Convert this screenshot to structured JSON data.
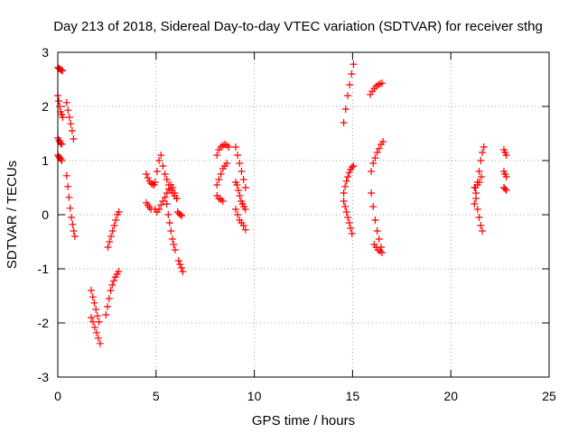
{
  "chart_data": {
    "type": "scatter",
    "title": "Day 213 of 2018, Sidereal Day-to-day VTEC variation (SDTVAR) for receiver sthg",
    "xlabel": "GPS time / hours",
    "ylabel": "SDTVAR / TECUs",
    "xlim": [
      0,
      25
    ],
    "ylim": [
      -3,
      3
    ],
    "xticks": [
      0,
      5,
      10,
      15,
      20,
      25
    ],
    "yticks": [
      -3,
      -2,
      -1,
      0,
      1,
      2,
      3
    ],
    "xtick_labels": [
      "0",
      "5",
      "10",
      "15",
      "20",
      "25"
    ],
    "ytick_labels": [
      "-3",
      "-2",
      "-1",
      "0",
      "1",
      "2",
      "3"
    ],
    "grid": true,
    "marker": "+",
    "color": "#ff0000",
    "segments": [
      {
        "x": [
          0.0,
          0.06,
          0.12,
          0.18,
          0.24
        ],
        "y": [
          2.72,
          2.7,
          2.69,
          2.67,
          2.66
        ]
      },
      {
        "x": [
          0.0,
          0.05,
          0.1,
          0.15,
          0.2,
          0.25
        ],
        "y": [
          2.2,
          2.1,
          2.0,
          1.9,
          1.85,
          1.8
        ]
      },
      {
        "x": [
          0.0,
          0.05,
          0.1,
          0.15,
          0.2
        ],
        "y": [
          1.42,
          1.38,
          1.35,
          1.32,
          1.3
        ]
      },
      {
        "x": [
          0.0,
          0.05,
          0.1,
          0.15,
          0.2
        ],
        "y": [
          1.1,
          1.07,
          1.05,
          1.03,
          1.0
        ]
      },
      {
        "x": [
          0.45,
          0.52,
          0.59,
          0.66,
          0.73,
          0.8
        ],
        "y": [
          2.07,
          1.93,
          1.8,
          1.68,
          1.55,
          1.4
        ]
      },
      {
        "x": [
          0.45,
          0.51,
          0.57,
          0.63,
          0.69,
          0.75,
          0.81,
          0.87
        ],
        "y": [
          0.72,
          0.52,
          0.32,
          0.12,
          -0.05,
          -0.18,
          -0.3,
          -0.4
        ]
      },
      {
        "x": [
          1.7,
          1.78,
          1.86,
          1.94,
          2.02,
          2.1
        ],
        "y": [
          -1.4,
          -1.52,
          -1.63,
          -1.75,
          -1.87,
          -1.98
        ]
      },
      {
        "x": [
          1.7,
          1.79,
          1.88,
          1.97,
          2.06,
          2.15
        ],
        "y": [
          -1.9,
          -1.98,
          -2.08,
          -2.18,
          -2.28,
          -2.38
        ]
      },
      {
        "x": [
          2.45,
          2.53,
          2.61,
          2.69,
          2.77,
          2.85,
          2.93,
          3.01,
          3.09
        ],
        "y": [
          -1.85,
          -1.7,
          -1.55,
          -1.4,
          -1.3,
          -1.22,
          -1.15,
          -1.1,
          -1.05
        ]
      },
      {
        "x": [
          2.55,
          2.63,
          2.71,
          2.79,
          2.87,
          2.95,
          3.03,
          3.11
        ],
        "y": [
          -0.6,
          -0.5,
          -0.4,
          -0.3,
          -0.2,
          -0.1,
          0.0,
          0.05
        ]
      },
      {
        "x": [
          4.5,
          4.58,
          4.66,
          4.74,
          4.82,
          4.9
        ],
        "y": [
          0.75,
          0.68,
          0.62,
          0.58,
          0.56,
          0.55
        ]
      },
      {
        "x": [
          4.5,
          4.58,
          4.66,
          4.74
        ],
        "y": [
          0.22,
          0.18,
          0.14,
          0.1
        ]
      },
      {
        "x": [
          4.95,
          5.05,
          5.15,
          5.25,
          5.35,
          5.45,
          5.55,
          5.65,
          5.75,
          5.85,
          5.95,
          6.05
        ],
        "y": [
          0.6,
          0.8,
          1.0,
          1.1,
          0.9,
          0.75,
          0.65,
          0.55,
          0.45,
          0.4,
          0.35,
          0.3
        ]
      },
      {
        "x": [
          4.95,
          5.05,
          5.15,
          5.25,
          5.35,
          5.45,
          5.55,
          5.65,
          5.75,
          5.85,
          5.95,
          6.05
        ],
        "y": [
          0.1,
          0.05,
          0.1,
          0.18,
          0.25,
          0.32,
          0.4,
          0.48,
          0.55,
          0.5,
          0.4,
          0.3
        ]
      },
      {
        "x": [
          5.55,
          5.62,
          5.69,
          5.76,
          5.83,
          5.9,
          5.97
        ],
        "y": [
          0.2,
          0.0,
          -0.15,
          -0.3,
          -0.45,
          -0.55,
          -0.65
        ]
      },
      {
        "x": [
          6.1,
          6.17,
          6.24,
          6.31
        ],
        "y": [
          0.05,
          0.02,
          0.0,
          -0.02
        ]
      },
      {
        "x": [
          6.15,
          6.22,
          6.29,
          6.36
        ],
        "y": [
          -0.85,
          -0.92,
          -0.98,
          -1.05
        ]
      },
      {
        "x": [
          8.1,
          8.2,
          8.3,
          8.4,
          8.5,
          8.6,
          8.7
        ],
        "y": [
          1.1,
          1.2,
          1.25,
          1.28,
          1.3,
          1.28,
          1.25
        ]
      },
      {
        "x": [
          8.1,
          8.2,
          8.3,
          8.4,
          8.5,
          8.6
        ],
        "y": [
          0.55,
          0.65,
          0.75,
          0.85,
          0.9,
          0.95
        ]
      },
      {
        "x": [
          8.1,
          8.2,
          8.3,
          8.4
        ],
        "y": [
          0.35,
          0.3,
          0.28,
          0.25
        ]
      },
      {
        "x": [
          9.05,
          9.15,
          9.25,
          9.35,
          9.45,
          9.55
        ],
        "y": [
          1.25,
          1.1,
          0.95,
          0.8,
          0.65,
          0.5
        ]
      },
      {
        "x": [
          9.05,
          9.12,
          9.19,
          9.26,
          9.33,
          9.4,
          9.47,
          9.54
        ],
        "y": [
          0.6,
          0.55,
          0.45,
          0.35,
          0.25,
          0.2,
          0.15,
          0.1
        ]
      },
      {
        "x": [
          9.05,
          9.15,
          9.25,
          9.35,
          9.45,
          9.55
        ],
        "y": [
          0.1,
          0.0,
          -0.1,
          -0.15,
          -0.2,
          -0.28
        ]
      },
      {
        "x": [
          14.55,
          14.65,
          14.75,
          14.85,
          14.95,
          15.05
        ],
        "y": [
          1.7,
          1.95,
          2.2,
          2.4,
          2.6,
          2.78
        ]
      },
      {
        "x": [
          14.55,
          14.62,
          14.69,
          14.76,
          14.83,
          14.9,
          14.97,
          15.04
        ],
        "y": [
          0.4,
          0.52,
          0.62,
          0.7,
          0.78,
          0.84,
          0.88,
          0.9
        ]
      },
      {
        "x": [
          14.55,
          14.62,
          14.69,
          14.76,
          14.83,
          14.9,
          14.97
        ],
        "y": [
          0.25,
          0.15,
          0.05,
          -0.05,
          -0.15,
          -0.25,
          -0.35
        ]
      },
      {
        "x": [
          15.9,
          16.0,
          16.1,
          16.2,
          16.3,
          16.4,
          16.5
        ],
        "y": [
          2.22,
          2.28,
          2.33,
          2.37,
          2.4,
          2.42,
          2.43
        ]
      },
      {
        "x": [
          15.95,
          16.05,
          16.15,
          16.25,
          16.35,
          16.45,
          16.55
        ],
        "y": [
          0.8,
          0.95,
          1.05,
          1.15,
          1.22,
          1.3,
          1.35
        ]
      },
      {
        "x": [
          15.95,
          16.05,
          16.15,
          16.25,
          16.35,
          16.45
        ],
        "y": [
          0.4,
          0.15,
          -0.1,
          -0.3,
          -0.45,
          -0.6
        ]
      },
      {
        "x": [
          16.1,
          16.2,
          16.3,
          16.4,
          16.5
        ],
        "y": [
          -0.55,
          -0.6,
          -0.65,
          -0.68,
          -0.7
        ]
      },
      {
        "x": [
          21.2,
          21.28,
          21.36,
          21.44,
          21.52,
          21.6,
          21.68
        ],
        "y": [
          0.2,
          0.4,
          0.6,
          0.8,
          1.0,
          1.15,
          1.25
        ]
      },
      {
        "x": [
          21.2,
          21.28,
          21.36,
          21.44,
          21.52,
          21.6
        ],
        "y": [
          0.5,
          0.3,
          0.1,
          -0.05,
          -0.2,
          -0.3
        ]
      },
      {
        "x": [
          21.25,
          21.35,
          21.45,
          21.55
        ],
        "y": [
          0.5,
          0.55,
          0.6,
          0.7
        ]
      },
      {
        "x": [
          22.7,
          22.76,
          22.82
        ],
        "y": [
          1.2,
          1.15,
          1.1
        ]
      },
      {
        "x": [
          22.7,
          22.76,
          22.82
        ],
        "y": [
          0.8,
          0.75,
          0.7
        ]
      },
      {
        "x": [
          22.7,
          22.76,
          22.82
        ],
        "y": [
          0.5,
          0.48,
          0.45
        ]
      }
    ]
  }
}
